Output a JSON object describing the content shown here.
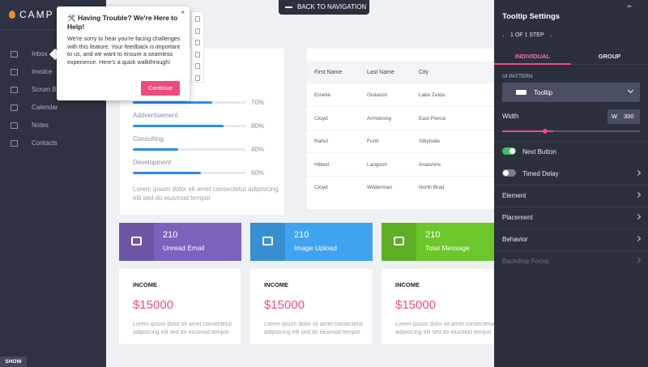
{
  "sidebar": {
    "logo": "CAMP",
    "items": [
      "Inbox",
      "Invoice",
      "Scrum Bo",
      "Calendar",
      "Notes",
      "Contacts"
    ],
    "show": "SHOW"
  },
  "back_button": "BACK TO NAVIGATION",
  "tooltip": {
    "title": "🛠️ Having Trouble? We're Here to Help!",
    "body": "We're sorry to hear you're facing challenges with this feature. Your feedback is important to us, and we want to ensure a seamless experience. Here's a quick walkthrough!",
    "button": "Continue"
  },
  "progress": {
    "labels": [
      null,
      "Addvertisement",
      "Consulting",
      "Development"
    ],
    "values": [
      70,
      80,
      40,
      60
    ],
    "value_labels": [
      "70%",
      "80%",
      "40%",
      "60%"
    ],
    "text": "Lorem ipsum dolor sit amet consectetur adipisicing elit sed do eiusmod tempor"
  },
  "table": {
    "header": [
      "First Name",
      "Last Name",
      "City"
    ],
    "rows": [
      [
        "Emelia",
        "Gislason",
        "Lake Zelda"
      ],
      [
        "Cloyd",
        "Armstrong",
        "East Pierce"
      ],
      [
        "Rahul",
        "Funk",
        "Sibylside"
      ],
      [
        "Hilbert",
        "Langosh",
        "Anaishire"
      ],
      [
        "Cloyd",
        "Wilderman",
        "North Brad"
      ]
    ]
  },
  "stats": [
    {
      "value": 210,
      "label": "Unread Email",
      "color": "#7b62bd"
    },
    {
      "value": 210,
      "label": "Image Upload",
      "color": "#3fa3f0"
    },
    {
      "value": 210,
      "label": "Total Message",
      "color": "#6cc72b"
    }
  ],
  "income": [
    {
      "title": "INCOME",
      "amount": "$15000",
      "text": "Lorem ipsum dolor sit amet consectetur adipisicing elit sed do eiusmod tempor"
    },
    {
      "title": "INCOME",
      "amount": "$15000",
      "text": "Lorem ipsum dolor sit amet consectetur adipisicing elit sed do eiusmod tempor"
    },
    {
      "title": "INCOME",
      "amount": "$15000",
      "text": "Lorem ipsum dolor sit amet consectetur adipisicing elit sed do eiusmod tempor"
    }
  ],
  "settings": {
    "title": "Tooltip Settings",
    "step": "1 OF 1 STEP",
    "tabs": [
      "INDIVIDUAL",
      "GROUP"
    ],
    "pattern_label": "UI PATTERN",
    "pattern": "Tooltip",
    "width_label": "Width",
    "width_prefix": "W",
    "width": 300,
    "toggles": [
      {
        "label": "Next Button",
        "on": true
      },
      {
        "label": "Timed Delay",
        "on": false
      }
    ],
    "sections": [
      "Element",
      "Placement",
      "Behavior",
      "Backdrop Focus"
    ]
  }
}
